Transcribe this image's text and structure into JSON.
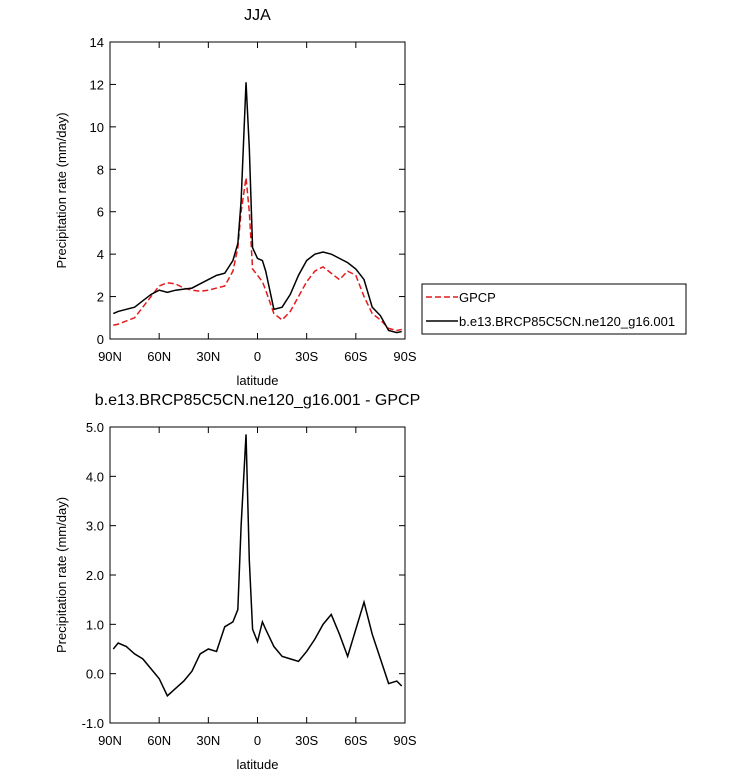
{
  "chart_data": [
    {
      "type": "line",
      "title": "JJA",
      "x_label": "latitude",
      "y_label": "Precipitation rate (mm/day)",
      "x": [
        88,
        85,
        80,
        75,
        70,
        65,
        60,
        55,
        50,
        45,
        40,
        35,
        30,
        25,
        20,
        15,
        12,
        10,
        7,
        5,
        3,
        0,
        -3,
        -5,
        -10,
        -15,
        -20,
        -25,
        -30,
        -35,
        -40,
        -45,
        -50,
        -55,
        -60,
        -65,
        -70,
        -75,
        -80,
        -85,
        -88
      ],
      "xlim": [
        90,
        -90
      ],
      "xticks": [
        {
          "value": 90,
          "label": "90N"
        },
        {
          "value": 60,
          "label": "60N"
        },
        {
          "value": 30,
          "label": "30N"
        },
        0,
        {
          "value": -30,
          "label": "30S"
        },
        {
          "value": -60,
          "label": "60S"
        },
        {
          "value": -90,
          "label": "90S"
        }
      ],
      "ylim": [
        0,
        14
      ],
      "yticks": [
        0,
        2,
        4,
        6,
        8,
        10,
        12,
        14
      ],
      "legend": "outside right",
      "series": [
        {
          "name": "GPCP",
          "color": "#e41a1c",
          "dashed": true,
          "values": [
            0.65,
            0.7,
            0.85,
            1.0,
            1.5,
            2.0,
            2.5,
            2.65,
            2.6,
            2.4,
            2.3,
            2.25,
            2.3,
            2.4,
            2.5,
            3.2,
            4.3,
            6.0,
            7.6,
            6.0,
            3.3,
            3.0,
            2.7,
            2.3,
            1.2,
            0.9,
            1.3,
            2.0,
            2.7,
            3.2,
            3.4,
            3.1,
            2.8,
            3.2,
            3.0,
            2.0,
            1.2,
            0.9,
            0.5,
            0.4,
            0.45
          ]
        },
        {
          "name": "b.e13.BRCP85C5CN.ne120_g16.001",
          "color": "#000000",
          "dashed": false,
          "values": [
            1.2,
            1.3,
            1.4,
            1.5,
            1.8,
            2.1,
            2.3,
            2.2,
            2.3,
            2.35,
            2.4,
            2.6,
            2.8,
            3.0,
            3.1,
            3.7,
            4.5,
            6.5,
            12.1,
            9.0,
            4.3,
            3.8,
            3.7,
            3.2,
            1.4,
            1.5,
            2.1,
            3.0,
            3.7,
            4.0,
            4.1,
            4.0,
            3.8,
            3.6,
            3.3,
            2.8,
            1.5,
            1.1,
            0.4,
            0.3,
            0.35
          ]
        }
      ]
    },
    {
      "type": "line",
      "title": "b.e13.BRCP85C5CN.ne120_g16.001 - GPCP",
      "x_label": "latitude",
      "y_label": "Precipitation rate (mm/day)",
      "x": [
        88,
        85,
        80,
        75,
        70,
        65,
        60,
        55,
        50,
        45,
        40,
        35,
        30,
        25,
        20,
        15,
        12,
        10,
        7,
        5,
        3,
        0,
        -3,
        -5,
        -10,
        -15,
        -20,
        -25,
        -30,
        -35,
        -40,
        -45,
        -50,
        -55,
        -60,
        -65,
        -70,
        -75,
        -80,
        -85,
        -88
      ],
      "xlim": [
        90,
        -90
      ],
      "xticks": [
        {
          "value": 90,
          "label": "90N"
        },
        {
          "value": 60,
          "label": "60N"
        },
        {
          "value": 30,
          "label": "30N"
        },
        0,
        {
          "value": -30,
          "label": "30S"
        },
        {
          "value": -60,
          "label": "60S"
        },
        {
          "value": -90,
          "label": "90S"
        }
      ],
      "ylim": [
        -1,
        5
      ],
      "yticks": [
        {
          "value": -1,
          "label": "-1.0"
        },
        {
          "value": 0,
          "label": "0.0"
        },
        {
          "value": 1,
          "label": "1.0"
        },
        {
          "value": 2,
          "label": "2.0"
        },
        {
          "value": 3,
          "label": "3.0"
        },
        {
          "value": 4,
          "label": "4.0"
        },
        {
          "value": 5,
          "label": "5.0"
        }
      ],
      "color": "#000000",
      "values": [
        0.5,
        0.62,
        0.55,
        0.4,
        0.3,
        0.1,
        -0.1,
        -0.45,
        -0.3,
        -0.15,
        0.05,
        0.4,
        0.5,
        0.45,
        0.95,
        1.05,
        1.3,
        3.0,
        4.85,
        2.3,
        0.9,
        0.65,
        1.05,
        0.9,
        0.55,
        0.35,
        0.3,
        0.25,
        0.45,
        0.7,
        1.0,
        1.2,
        0.8,
        0.35,
        0.9,
        1.45,
        0.8,
        0.3,
        -0.2,
        -0.15,
        -0.25
      ]
    }
  ]
}
